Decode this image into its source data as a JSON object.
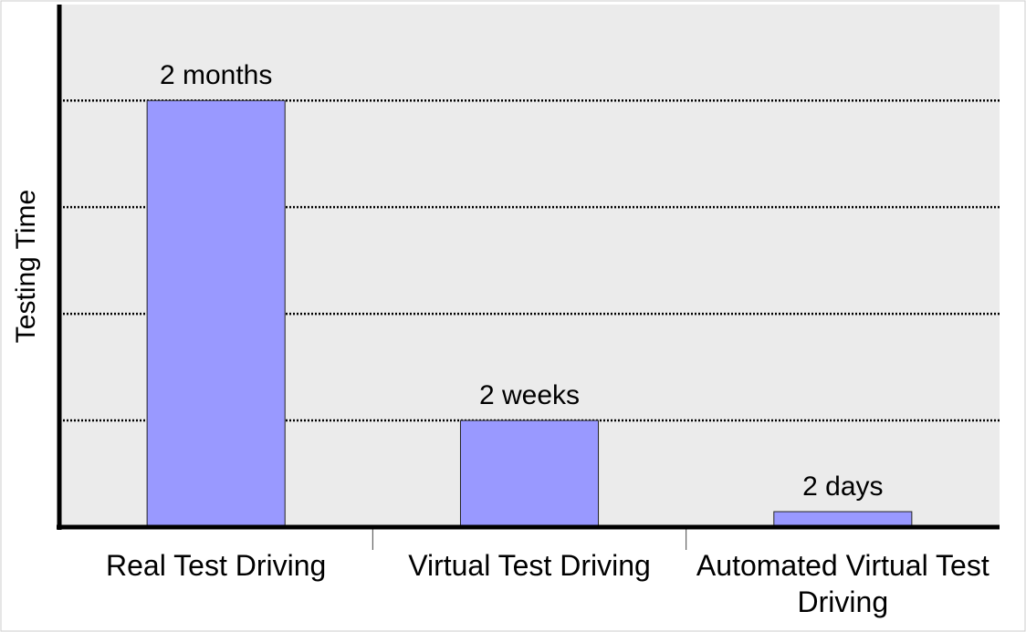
{
  "chart_data": {
    "type": "bar",
    "y_label": "Testing Time",
    "categories": [
      "Real Test Driving",
      "Virtual Test Driving",
      "Automated Virtual Test Driving"
    ],
    "values": [
      8,
      2,
      0.29
    ],
    "value_labels": [
      "2 months",
      "2 weeks",
      "2 days"
    ],
    "color": "#9999ff",
    "ylim": [
      0,
      9.8
    ],
    "yticks": [
      2,
      4,
      6,
      8
    ],
    "grid": true
  }
}
